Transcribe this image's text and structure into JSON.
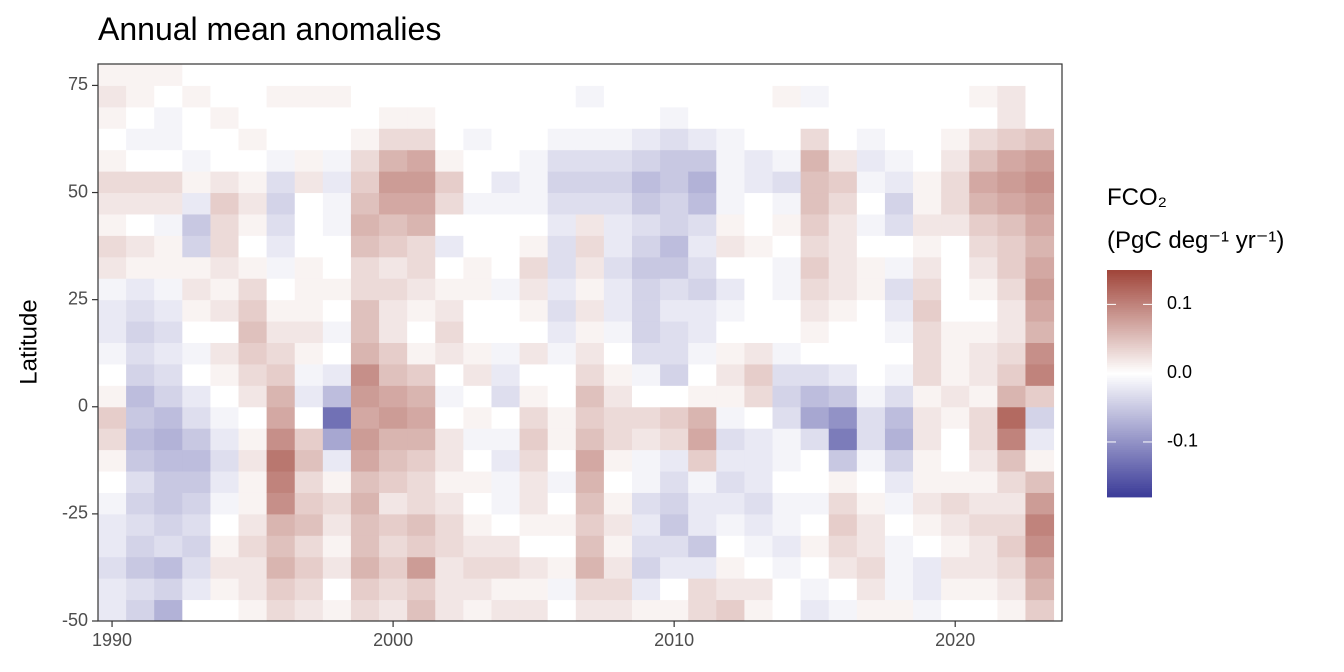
{
  "chart_data": {
    "type": "heatmap",
    "title": "Annual mean anomalies",
    "y_label": "Latitude",
    "legend_title": [
      "FCO₂",
      "(PgC deg⁻¹ yr⁻¹)"
    ],
    "x": [
      1990,
      1991,
      1992,
      1993,
      1994,
      1995,
      1996,
      1997,
      1998,
      1999,
      2000,
      2001,
      2002,
      2003,
      2004,
      2005,
      2006,
      2007,
      2008,
      2009,
      2010,
      2011,
      2012,
      2013,
      2014,
      2015,
      2016,
      2017,
      2018,
      2019,
      2020,
      2021,
      2022,
      2023
    ],
    "y": [
      -47.5,
      -42.5,
      -37.5,
      -32.5,
      -27.5,
      -22.5,
      -17.5,
      -12.5,
      -7.5,
      -2.5,
      2.5,
      7.5,
      12.5,
      17.5,
      22.5,
      27.5,
      32.5,
      37.5,
      42.5,
      47.5,
      52.5,
      57.5,
      62.5,
      67.5,
      72.5,
      77.5
    ],
    "z": [
      [
        -0.02,
        -0.02,
        -0.03,
        -0.02,
        -0.02,
        -0.01,
        0,
        0.01,
        0.03,
        0.04,
        0.01,
        0,
        -0.01,
        -0.02,
        -0.02,
        -0.01,
        0.02,
        0.03,
        0.01,
        0.02,
        0.03,
        0.01,
        0,
        0.01,
        0.02,
        0.01
      ],
      [
        -0.04,
        -0.03,
        -0.05,
        -0.04,
        -0.03,
        -0.04,
        -0.03,
        -0.05,
        -0.06,
        -0.05,
        -0.06,
        -0.04,
        -0.03,
        -0.04,
        -0.03,
        -0.02,
        0.01,
        0.02,
        0,
        0.02,
        0.03,
        0,
        -0.01,
        0,
        0.01,
        0.01
      ],
      [
        -0.07,
        -0.04,
        -0.06,
        -0.03,
        -0.04,
        -0.05,
        -0.05,
        -0.06,
        -0.07,
        -0.06,
        -0.04,
        -0.03,
        -0.02,
        -0.03,
        -0.02,
        -0.01,
        0.01,
        0.01,
        -0.01,
        0.02,
        0.03,
        0,
        -0.01,
        -0.01,
        0,
        0.01
      ],
      [
        0,
        -0.02,
        -0.03,
        -0.04,
        -0.03,
        -0.04,
        -0.05,
        -0.06,
        -0.05,
        -0.03,
        -0.02,
        0,
        -0.01,
        0,
        0.01,
        0.02,
        0.01,
        -0.04,
        -0.05,
        -0.02,
        0.01,
        -0.01,
        0,
        0,
        0.01,
        0
      ],
      [
        0,
        0.01,
        0.02,
        0.01,
        0,
        -0.01,
        -0.02,
        -0.03,
        -0.02,
        -0.01,
        0,
        0.01,
        0.02,
        0,
        0.02,
        0.01,
        0.02,
        0.03,
        0.03,
        0.04,
        0.02,
        0,
        0,
        0.01,
        0,
        0
      ],
      [
        0.01,
        0.02,
        0.02,
        0.03,
        0.02,
        0.01,
        0.01,
        0.02,
        0.01,
        0,
        0.02,
        0.03,
        0.04,
        0.05,
        0.04,
        0.03,
        0.01,
        0,
        0.01,
        0.02,
        0.01,
        0,
        0.01,
        0,
        0,
        0
      ],
      [
        0.03,
        0.04,
        0.06,
        0.05,
        0.06,
        0.09,
        0.1,
        0.11,
        0.09,
        0.07,
        0.06,
        0.04,
        0.03,
        0.02,
        0.01,
        0,
        -0.01,
        -0.02,
        -0.03,
        -0.04,
        -0.03,
        -0.01,
        0,
        0,
        0.01,
        0
      ],
      [
        0.02,
        0.03,
        0.04,
        0.03,
        0.05,
        0.04,
        0.03,
        0.05,
        0.04,
        0,
        -0.02,
        -0.01,
        0.01,
        0.02,
        0.01,
        0.01,
        0.01,
        0,
        0,
        0,
        0.02,
        0.01,
        0,
        0,
        0.01,
        0
      ],
      [
        0.01,
        0,
        0.02,
        0.01,
        0.02,
        0.03,
        0.01,
        -0.02,
        -0.08,
        -0.13,
        -0.06,
        -0.02,
        0,
        -0.01,
        0,
        0.01,
        0,
        0,
        -0.01,
        -0.01,
        -0.02,
        -0.01,
        0,
        0,
        0.01,
        0
      ],
      [
        0.03,
        0.04,
        0.06,
        0.05,
        0.05,
        0.06,
        0.05,
        0.07,
        0.08,
        0.07,
        0.08,
        0.09,
        0.06,
        0.05,
        0.05,
        0.03,
        0.03,
        0.05,
        0.06,
        0.05,
        0.04,
        0.03,
        0.01,
        0,
        0,
        0
      ],
      [
        0.02,
        0.03,
        0.04,
        0.03,
        0.04,
        0.02,
        0.04,
        0.05,
        0.06,
        0.08,
        0.07,
        0.05,
        0.04,
        0.02,
        0.02,
        0.03,
        0.02,
        0.04,
        0.05,
        0.07,
        0.08,
        0.06,
        0.03,
        0.01,
        0,
        0
      ],
      [
        0.05,
        0.04,
        0.08,
        0.04,
        0.05,
        0.03,
        0.03,
        0.04,
        0.06,
        0.07,
        0.06,
        0.04,
        0.01,
        0,
        0.01,
        0.02,
        0.03,
        0.03,
        0.06,
        0.07,
        0.08,
        0.07,
        0.03,
        0.01,
        0,
        0
      ],
      [
        0.02,
        0.02,
        0.02,
        0.03,
        0.03,
        0.02,
        0.01,
        0.02,
        0.02,
        0,
        -0.01,
        0,
        0.02,
        0.03,
        0.02,
        0.01,
        0,
        -0.02,
        0,
        0.03,
        0.04,
        0.01,
        0,
        0,
        0,
        0
      ],
      [
        0.01,
        0.02,
        0.03,
        0.02,
        0.01,
        0,
        0.01,
        0,
        -0.01,
        0.01,
        0,
        0.02,
        0.01,
        0,
        0,
        0.01,
        0.01,
        0,
        0,
        -0.01,
        0,
        0,
        -0.01,
        0,
        0,
        0
      ],
      [
        0.02,
        0.01,
        0.03,
        0.02,
        0,
        -0.01,
        -0.01,
        -0.02,
        -0.01,
        0,
        -0.03,
        -0.02,
        -0.01,
        0,
        0,
        -0.01,
        0,
        0,
        0,
        -0.01,
        -0.02,
        0,
        0,
        0,
        0,
        0
      ],
      [
        0.02,
        0.01,
        0.02,
        0,
        0.01,
        0.02,
        0.02,
        0.03,
        0.04,
        0.03,
        0.01,
        0,
        0.02,
        0,
        0.01,
        0.02,
        0.03,
        0.01,
        0,
        -0.01,
        -0.01,
        -0.01,
        0,
        0,
        0,
        0
      ],
      [
        0,
        -0.01,
        0.01,
        0,
        0.01,
        0,
        -0.01,
        0,
        0.01,
        0.01,
        0,
        0,
        -0.01,
        -0.02,
        -0.03,
        -0.02,
        -0.03,
        -0.03,
        -0.02,
        -0.03,
        -0.04,
        -0.03,
        -0.01,
        0,
        0,
        0
      ],
      [
        0.02,
        0.03,
        0.06,
        0.05,
        0.04,
        0.05,
        0.06,
        0.07,
        0.05,
        0.04,
        0.05,
        0.03,
        0.02,
        0.01,
        0.02,
        0.01,
        0.02,
        0.03,
        0.02,
        -0.03,
        -0.04,
        -0.03,
        -0.01,
        0,
        -0.01,
        0
      ],
      [
        0.02,
        0.03,
        0.02,
        0.01,
        0.02,
        0.01,
        0,
        0.01,
        0.03,
        0.03,
        0.02,
        0.01,
        0,
        -0.01,
        -0.02,
        -0.02,
        -0.03,
        -0.02,
        -0.02,
        -0.03,
        -0.04,
        -0.03,
        -0.01,
        0,
        0,
        0
      ],
      [
        0.01,
        -0.02,
        -0.04,
        -0.03,
        -0.02,
        -0.03,
        -0.01,
        -0.01,
        0.02,
        0.03,
        0,
        -0.01,
        -0.03,
        -0.04,
        -0.04,
        -0.04,
        -0.05,
        -0.04,
        -0.03,
        -0.05,
        -0.06,
        -0.04,
        -0.02,
        0,
        0,
        0
      ],
      [
        0.01,
        0,
        -0.02,
        -0.03,
        -0.05,
        -0.04,
        -0.03,
        -0.02,
        0.03,
        0.04,
        0,
        -0.04,
        -0.03,
        -0.03,
        -0.02,
        -0.03,
        -0.05,
        -0.06,
        -0.04,
        -0.04,
        -0.05,
        -0.05,
        -0.03,
        -0.01,
        0,
        0
      ],
      [
        0.03,
        0.03,
        -0.02,
        -0.05,
        -0.02,
        -0.02,
        -0.01,
        0.04,
        0.07,
        0.06,
        0.01,
        0,
        -0.01,
        -0.02,
        -0.02,
        -0.04,
        -0.03,
        -0.02,
        -0.03,
        -0.06,
        -0.07,
        -0.05,
        -0.02,
        0,
        0,
        0
      ],
      [
        0.04,
        0.02,
        0.01,
        0,
        -0.01,
        -0.02,
        -0.03,
        -0.02,
        -0.03,
        -0.01,
        0.01,
        0.02,
        0.01,
        0,
        -0.01,
        -0.02,
        0,
        0.02,
        0.01,
        -0.01,
        -0.01,
        -0.01,
        -0.01,
        0,
        0,
        0
      ],
      [
        0.01,
        0.02,
        0,
        -0.01,
        -0.02,
        -0.03,
        -0.02,
        -0.02,
        -0.02,
        0,
        0.03,
        0.04,
        0.02,
        0,
        0,
        0,
        0,
        0.01,
        0,
        0,
        -0.02,
        -0.02,
        0,
        0,
        0,
        0
      ],
      [
        0,
        0,
        -0.01,
        -0.02,
        -0.01,
        -0.01,
        0,
        -0.01,
        -0.01,
        -0.03,
        -0.04,
        -0.03,
        -0.01,
        0,
        0,
        -0.01,
        -0.01,
        0,
        0.01,
        -0.01,
        -0.03,
        -0.01,
        0,
        0,
        0.01,
        0
      ],
      [
        -0.02,
        -0.01,
        0,
        0.01,
        0,
        -0.01,
        0,
        0,
        -0.03,
        -0.08,
        -0.06,
        -0.03,
        0,
        0.01,
        0.02,
        0.03,
        0.04,
        0.03,
        0.04,
        0.05,
        0.05,
        0.06,
        0.03,
        0,
        -0.01,
        0
      ],
      [
        -0.01,
        0,
        0.02,
        0.03,
        0.04,
        0.03,
        0.01,
        -0.05,
        -0.12,
        -0.1,
        -0.05,
        -0.02,
        0,
        0,
        0.01,
        0.02,
        0.02,
        0.02,
        0.02,
        0.03,
        0.04,
        0.02,
        0,
        0,
        0,
        0
      ],
      [
        0.01,
        0.02,
        0.03,
        0.02,
        0.02,
        0.01,
        0,
        -0.01,
        -0.03,
        -0.03,
        -0.01,
        0,
        0,
        0,
        0,
        0.01,
        0.01,
        0,
        -0.01,
        0,
        -0.01,
        -0.02,
        -0.01,
        0,
        0,
        0
      ],
      [
        0.01,
        -0.01,
        -0.01,
        -0.01,
        0,
        -0.01,
        -0.02,
        -0.04,
        -0.07,
        -0.06,
        -0.03,
        -0.01,
        0,
        -0.01,
        -0.02,
        -0.03,
        -0.01,
        0,
        -0.03,
        -0.04,
        -0.02,
        -0.01,
        0,
        0,
        0,
        0
      ],
      [
        -0.01,
        -0.02,
        -0.02,
        0,
        0.01,
        0.02,
        0.01,
        0.01,
        0.02,
        0.02,
        0.01,
        0.03,
        0.03,
        0.03,
        0.04,
        0.03,
        0.02,
        0.01,
        0.02,
        0.01,
        0.01,
        0,
        0,
        0,
        0,
        0
      ],
      [
        0,
        0.01,
        0.02,
        0.01,
        0.02,
        0.03,
        0.01,
        0,
        0,
        0.01,
        0.02,
        0.01,
        0.01,
        0.01,
        0,
        0,
        0,
        0,
        0.02,
        0.03,
        0.03,
        0.02,
        0.01,
        0,
        0,
        0
      ],
      [
        0,
        0.01,
        0.02,
        0.02,
        0.03,
        0.02,
        0.01,
        0.02,
        0.03,
        0.03,
        0.01,
        0.02,
        0.02,
        0.01,
        0,
        0.01,
        0.02,
        0.03,
        0.04,
        0.06,
        0.07,
        0.05,
        0.03,
        0,
        0.01,
        0
      ],
      [
        0.01,
        0.02,
        0.03,
        0.04,
        0.03,
        0.02,
        0.03,
        0.05,
        0.1,
        0.12,
        0.06,
        0.04,
        0.03,
        0.02,
        0.02,
        0.03,
        0.04,
        0.04,
        0.05,
        0.07,
        0.08,
        0.07,
        0.04,
        0.02,
        0.02,
        0
      ],
      [
        0.04,
        0.06,
        0.07,
        0.09,
        0.1,
        0.08,
        0.05,
        0.01,
        -0.02,
        -0.04,
        0.04,
        0.1,
        0.09,
        0.06,
        0.07,
        0.08,
        0.07,
        0.06,
        0.07,
        0.08,
        0.09,
        0.08,
        0.05,
        0,
        0,
        0
      ]
    ],
    "xlim": [
      1989.5,
      2023.8
    ],
    "xticks": [
      1990,
      2000,
      2010,
      2020
    ],
    "ylim": [
      -50,
      80
    ],
    "yticks": [
      -50,
      -25,
      0,
      25,
      50,
      75
    ],
    "clim": [
      -0.18,
      0.15
    ],
    "cticks": [
      -0.1,
      {
        "value": 0,
        "label": "0.0"
      },
      0.1
    ],
    "colors": {
      "low": "#3a3a98",
      "mid": "#ffffff",
      "high": "#a0453a"
    }
  }
}
